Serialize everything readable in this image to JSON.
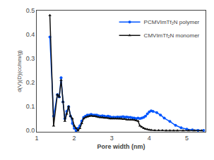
{
  "chart_data": {
    "type": "line",
    "xlabel": "Pore width (nm)",
    "ylabel": "d(V)(D)(cc/nm/g)",
    "xlim": [
      1.0,
      5.5
    ],
    "ylim": [
      -0.005,
      0.5
    ],
    "xticks": [
      1,
      2,
      3,
      4,
      5
    ],
    "yticks": [
      {
        "value": 0.0,
        "label": "0.0"
      },
      0.1,
      0.2,
      0.3,
      0.4,
      0.5
    ],
    "grid": false,
    "legend": "upper right",
    "series": [
      {
        "name": "PCMVImTf₂N polymer",
        "color": "#0055ff",
        "marker": "circle",
        "x": [
          1.35,
          1.45,
          1.55,
          1.6,
          1.65,
          1.7,
          1.75,
          1.8,
          1.85,
          1.9,
          1.95,
          2.0,
          2.05,
          2.1,
          2.15,
          2.2,
          2.25,
          2.3,
          2.35,
          2.4,
          2.45,
          2.5,
          2.55,
          2.6,
          2.65,
          2.7,
          2.75,
          2.8,
          2.85,
          2.9,
          2.95,
          3.0,
          3.05,
          3.1,
          3.15,
          3.2,
          3.25,
          3.3,
          3.35,
          3.4,
          3.45,
          3.5,
          3.55,
          3.6,
          3.65,
          3.7,
          3.75,
          3.8,
          3.85,
          3.9,
          3.95,
          4.0,
          4.05,
          4.1,
          4.2,
          4.3,
          4.4,
          4.55,
          4.7,
          4.85,
          5.0,
          5.15,
          5.3,
          5.45
        ],
        "values": [
          0.39,
          0.06,
          0.15,
          0.14,
          0.22,
          0.12,
          0.05,
          0.08,
          0.1,
          0.06,
          0.03,
          0.01,
          0.0,
          0.01,
          0.02,
          0.04,
          0.055,
          0.06,
          0.065,
          0.065,
          0.068,
          0.065,
          0.065,
          0.065,
          0.062,
          0.06,
          0.062,
          0.06,
          0.058,
          0.06,
          0.058,
          0.055,
          0.056,
          0.055,
          0.057,
          0.056,
          0.057,
          0.058,
          0.056,
          0.057,
          0.055,
          0.055,
          0.053,
          0.052,
          0.05,
          0.052,
          0.05,
          0.052,
          0.055,
          0.06,
          0.07,
          0.078,
          0.082,
          0.08,
          0.075,
          0.065,
          0.052,
          0.038,
          0.022,
          0.012,
          0.006,
          0.003,
          0.001,
          0.001
        ]
      },
      {
        "name": "CMVImTf₂N monomer",
        "color": "#111111",
        "marker": "triangle-up",
        "x": [
          1.35,
          1.45,
          1.55,
          1.6,
          1.65,
          1.7,
          1.75,
          1.8,
          1.85,
          1.9,
          1.95,
          2.0,
          2.05,
          2.1,
          2.15,
          2.2,
          2.25,
          2.3,
          2.35,
          2.4,
          2.45,
          2.5,
          2.55,
          2.6,
          2.65,
          2.7,
          2.75,
          2.8,
          2.85,
          2.9,
          2.95,
          3.0,
          3.05,
          3.1,
          3.15,
          3.2,
          3.25,
          3.3,
          3.35,
          3.4,
          3.45,
          3.5,
          3.55,
          3.6,
          3.65,
          3.7,
          3.75,
          3.8,
          3.85,
          3.9,
          3.95,
          4.0,
          4.05,
          4.15,
          4.25,
          4.35,
          4.45,
          4.55,
          4.65,
          4.75,
          4.9,
          5.05,
          5.2,
          5.4
        ],
        "values": [
          0.48,
          0.02,
          0.15,
          0.14,
          0.21,
          0.12,
          0.04,
          0.07,
          0.1,
          0.06,
          0.05,
          0.02,
          0.01,
          0.0,
          0.01,
          0.03,
          0.05,
          0.055,
          0.058,
          0.06,
          0.062,
          0.06,
          0.06,
          0.058,
          0.056,
          0.055,
          0.055,
          0.053,
          0.053,
          0.052,
          0.05,
          0.05,
          0.05,
          0.05,
          0.05,
          0.05,
          0.05,
          0.048,
          0.048,
          0.046,
          0.046,
          0.045,
          0.045,
          0.044,
          0.042,
          0.04,
          0.02,
          0.015,
          0.01,
          0.007,
          0.005,
          0.003,
          0.002,
          0.001,
          0.001,
          0.001,
          0.0,
          0.0,
          0.0,
          0.0,
          0.0,
          0.0,
          0.0,
          0.0
        ]
      }
    ]
  }
}
